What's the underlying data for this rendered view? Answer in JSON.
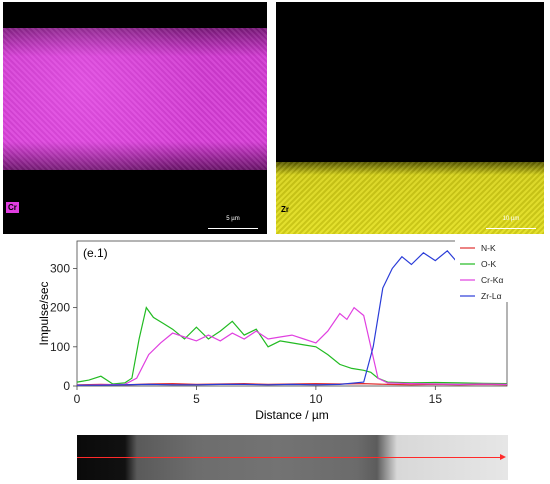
{
  "maps": [
    {
      "element_label": "Cr",
      "scale_label": "5 µm",
      "color": "#d83ed8"
    },
    {
      "element_label": "Zr",
      "scale_label": "10 µm",
      "color": "#e3df1c"
    }
  ],
  "chart_data": {
    "type": "line",
    "panel_label": "(e.1)",
    "xlabel": "Distance / µm",
    "ylabel": "Impulse/sec",
    "xlim": [
      0,
      18
    ],
    "ylim": [
      0,
      370
    ],
    "xticks": [
      0,
      5,
      10,
      15
    ],
    "yticks": [
      0,
      100,
      200,
      300
    ],
    "legend": "top-right",
    "series": [
      {
        "name": "N-K",
        "color": "#e03030",
        "x": [
          0,
          1,
          2,
          3,
          4,
          5,
          6,
          7,
          8,
          9,
          10,
          11,
          12,
          13,
          14,
          15,
          16,
          17,
          18
        ],
        "y": [
          3,
          4,
          3,
          5,
          6,
          4,
          5,
          6,
          4,
          5,
          6,
          5,
          6,
          4,
          3,
          4,
          3,
          4,
          3
        ]
      },
      {
        "name": "O-K",
        "color": "#22bb22",
        "x": [
          0,
          0.5,
          1,
          1.5,
          2,
          2.3,
          2.6,
          2.9,
          3.2,
          3.6,
          4,
          4.5,
          5,
          5.5,
          6,
          6.5,
          7,
          7.5,
          8,
          8.5,
          9,
          9.5,
          10,
          10.5,
          11,
          11.5,
          12,
          12.3,
          12.6,
          13,
          14,
          15,
          16,
          17,
          18
        ],
        "y": [
          10,
          15,
          25,
          5,
          8,
          20,
          120,
          200,
          175,
          160,
          145,
          120,
          150,
          120,
          140,
          165,
          130,
          145,
          100,
          115,
          110,
          105,
          100,
          80,
          55,
          45,
          40,
          35,
          20,
          10,
          8,
          9,
          8,
          7,
          6
        ]
      },
      {
        "name": "Cr-Kα",
        "color": "#e040e0",
        "x": [
          0,
          1,
          2,
          2.5,
          3,
          3.5,
          4,
          4.5,
          5,
          5.5,
          6,
          6.5,
          7,
          7.5,
          8,
          8.5,
          9,
          9.5,
          10,
          10.5,
          11,
          11.3,
          11.6,
          12,
          12.3,
          12.6,
          13,
          14,
          15,
          16,
          17,
          18
        ],
        "y": [
          2,
          3,
          4,
          20,
          80,
          110,
          135,
          125,
          115,
          130,
          115,
          135,
          120,
          140,
          120,
          125,
          130,
          120,
          110,
          140,
          185,
          170,
          200,
          180,
          100,
          20,
          8,
          6,
          5,
          4,
          5,
          4
        ]
      },
      {
        "name": "Zr-Lα",
        "color": "#2a3cd8",
        "x": [
          0,
          1,
          2,
          3,
          4,
          5,
          6,
          7,
          8,
          9,
          10,
          11,
          12,
          12.4,
          12.8,
          13.2,
          13.6,
          14,
          14.5,
          15,
          15.5,
          16,
          16.5,
          17,
          17.5,
          18
        ],
        "y": [
          2,
          2,
          3,
          4,
          3,
          3,
          4,
          4,
          3,
          4,
          3,
          4,
          10,
          100,
          250,
          300,
          330,
          310,
          340,
          320,
          345,
          310,
          330,
          290,
          320,
          335
        ]
      }
    ]
  }
}
